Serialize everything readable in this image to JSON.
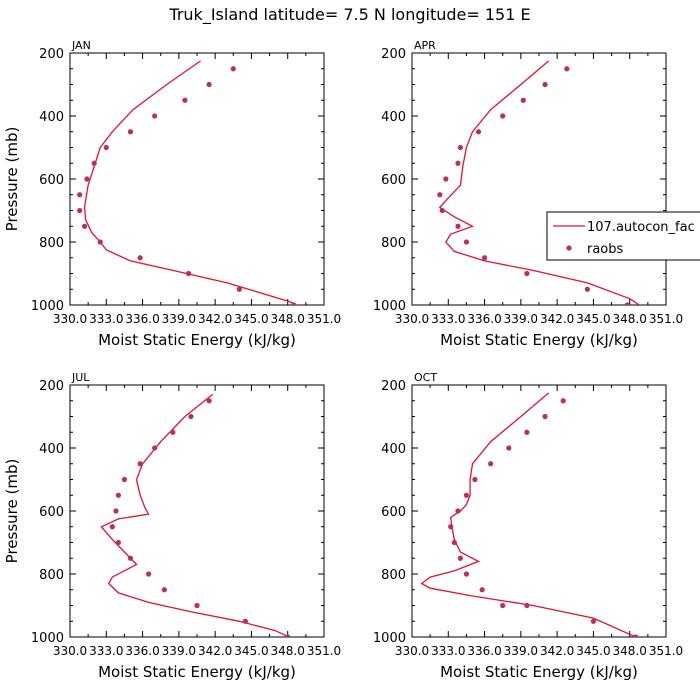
{
  "title": "Truk_Island  latitude= 7.5 N longitude= 151 E",
  "colors": {
    "model_line": "#e0142c",
    "raobs_dot": "#b8305e",
    "axes": "#000000"
  },
  "chart_data": [
    {
      "type": "scatter",
      "panel_label": "JAN",
      "xlabel": "Moist Static Energy (kJ/kg)",
      "ylabel": "Pressure (mb)",
      "xlim": [
        330.0,
        351.0
      ],
      "ylim": [
        1000,
        200
      ],
      "yticks": [
        200,
        400,
        600,
        800,
        1000
      ],
      "xtick_labels": [
        "330.0",
        "333.0",
        "336.0",
        "339.0",
        "342.0",
        "345.0",
        "348.0",
        "351.0"
      ],
      "series": [
        {
          "name": "107.autocon_fac",
          "kind": "line",
          "x": [
            340.8,
            338.0,
            335.2,
            333.5,
            332.5,
            332.0,
            331.5,
            331.2,
            331.3,
            331.8,
            332.5,
            333.0,
            335.0,
            338.5,
            343.0,
            346.5,
            348.2,
            349.0
          ],
          "y": [
            225,
            300,
            380,
            450,
            500,
            560,
            620,
            690,
            730,
            770,
            800,
            825,
            860,
            890,
            930,
            970,
            990,
            1005
          ]
        },
        {
          "name": "raobs",
          "kind": "points",
          "x": [
            343.5,
            341.5,
            339.5,
            337.0,
            335.0,
            333.0,
            332.0,
            331.4,
            330.8,
            330.8,
            331.2,
            332.5,
            335.8,
            339.8,
            344.0,
            348.5
          ],
          "y": [
            250,
            300,
            350,
            400,
            450,
            500,
            550,
            600,
            650,
            700,
            750,
            800,
            850,
            900,
            950,
            1000
          ]
        }
      ]
    },
    {
      "type": "scatter",
      "panel_label": "APR",
      "xlabel": "Moist Static Energy (kJ/kg)",
      "ylabel": "",
      "xlim": [
        330.0,
        351.0
      ],
      "ylim": [
        1000,
        200
      ],
      "yticks": [
        200,
        400,
        600,
        800,
        1000
      ],
      "xtick_labels": [
        "330.0",
        "333.0",
        "336.0",
        "339.0",
        "342.0",
        "345.0",
        "348.0",
        "351.0"
      ],
      "series": [
        {
          "name": "107.autocon_fac",
          "kind": "line",
          "x": [
            341.3,
            339.0,
            336.5,
            335.0,
            334.5,
            334.2,
            334.0,
            333.0,
            332.3,
            333.5,
            335.0,
            333.2,
            332.8,
            333.5,
            336.0,
            340.0,
            344.5,
            348.0,
            349.0
          ],
          "y": [
            225,
            300,
            380,
            450,
            500,
            560,
            620,
            660,
            690,
            720,
            750,
            775,
            800,
            830,
            860,
            890,
            930,
            980,
            1005
          ]
        },
        {
          "name": "raobs",
          "kind": "points",
          "x": [
            342.8,
            341.0,
            339.2,
            337.5,
            335.5,
            334.0,
            333.8,
            332.8,
            332.3,
            332.5,
            333.8,
            334.5,
            336.0,
            339.5,
            344.5,
            347.8
          ],
          "y": [
            250,
            300,
            350,
            400,
            450,
            500,
            550,
            600,
            650,
            700,
            750,
            800,
            850,
            900,
            950,
            1000
          ]
        }
      ],
      "legend": {
        "position": "right",
        "entries": [
          {
            "label": "107.autocon_fac",
            "kind": "line"
          },
          {
            "label": "raobs",
            "kind": "points"
          }
        ]
      }
    },
    {
      "type": "scatter",
      "panel_label": "JUL",
      "xlabel": "Moist Static Energy (kJ/kg)",
      "ylabel": "Pressure (mb)",
      "xlim": [
        330.0,
        351.0
      ],
      "ylim": [
        1000,
        200
      ],
      "yticks": [
        200,
        400,
        600,
        800,
        1000
      ],
      "xtick_labels": [
        "330.0",
        "333.0",
        "336.0",
        "339.0",
        "342.0",
        "345.0",
        "348.0",
        "351.0"
      ],
      "series": [
        {
          "name": "107.autocon_fac",
          "kind": "line",
          "x": [
            341.8,
            339.5,
            337.5,
            336.0,
            335.5,
            335.8,
            336.2,
            336.5,
            334.0,
            332.6,
            333.5,
            334.5,
            335.5,
            333.5,
            333.2,
            334.0,
            336.5,
            340.0,
            344.0,
            347.0,
            348.2
          ],
          "y": [
            230,
            300,
            380,
            450,
            500,
            550,
            590,
            610,
            625,
            650,
            690,
            730,
            770,
            810,
            830,
            860,
            890,
            920,
            950,
            980,
            1002
          ]
        },
        {
          "name": "raobs",
          "kind": "points",
          "x": [
            341.5,
            340.0,
            338.5,
            337.0,
            335.8,
            334.5,
            334.0,
            333.8,
            333.5,
            334.0,
            335.0,
            336.5,
            337.8,
            340.5,
            344.5,
            348.0
          ],
          "y": [
            250,
            300,
            350,
            400,
            450,
            500,
            550,
            600,
            650,
            700,
            750,
            800,
            850,
            900,
            950,
            1000
          ]
        }
      ]
    },
    {
      "type": "scatter",
      "panel_label": "OCT",
      "xlabel": "Moist Static Energy (kJ/kg)",
      "ylabel": "",
      "xlim": [
        330.0,
        351.0
      ],
      "ylim": [
        1000,
        200
      ],
      "yticks": [
        200,
        400,
        600,
        800,
        1000
      ],
      "xtick_labels": [
        "330.0",
        "333.0",
        "336.0",
        "339.0",
        "342.0",
        "345.0",
        "348.0",
        "351.0"
      ],
      "series": [
        {
          "name": "107.autocon_fac",
          "kind": "line",
          "x": [
            341.3,
            339.0,
            336.5,
            335.0,
            334.8,
            334.8,
            334.5,
            334.0,
            333.2,
            333.3,
            333.5,
            334.0,
            335.5,
            333.5,
            331.5,
            330.8,
            331.5,
            335.0,
            340.0,
            345.0,
            348.5
          ],
          "y": [
            225,
            300,
            380,
            450,
            500,
            550,
            580,
            600,
            620,
            650,
            690,
            730,
            760,
            790,
            810,
            830,
            845,
            870,
            900,
            940,
            1000
          ]
        },
        {
          "name": "raobs",
          "kind": "points",
          "x": [
            342.5,
            341.0,
            339.5,
            338.0,
            336.5,
            335.2,
            334.5,
            333.8,
            333.2,
            333.5,
            334.0,
            334.5,
            335.8,
            337.5,
            339.5,
            345.0,
            348.5
          ],
          "y": [
            250,
            300,
            350,
            400,
            450,
            500,
            550,
            600,
            650,
            700,
            750,
            800,
            850,
            900,
            900,
            950,
            1000
          ]
        }
      ]
    }
  ]
}
